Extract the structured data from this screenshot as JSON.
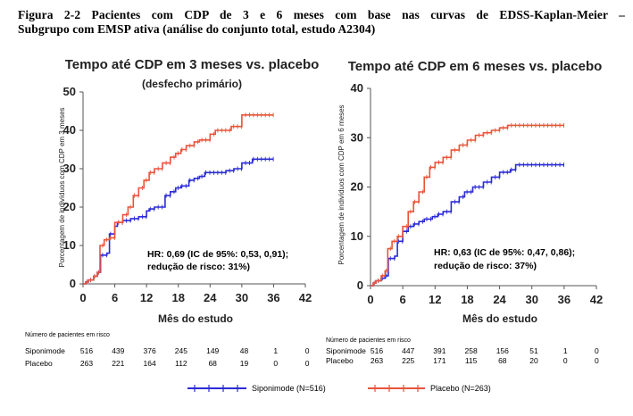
{
  "caption": {
    "line1": "Figura 2-2 Pacientes com CDP de 3 e 6 meses com base nas curvas de EDSS-Kaplan-Meier –",
    "line2": "Subgrupo com EMSP ativa (análise do conjunto total, estudo A2304)"
  },
  "colors": {
    "siponimod": "#2b2bd6",
    "placebo": "#e8543a"
  },
  "legend": {
    "siponimod": "Siponimode (N=516)",
    "placebo": "Placebo (N=263)"
  },
  "chart_data": [
    {
      "type": "line",
      "title": "Tempo até CDP em 3 meses vs. placebo",
      "subtitle": "(desfecho primário)",
      "xlabel": "Mês do estudo",
      "ylabel": "Porcentagem de indivíduos com CDP em 3 meses",
      "xlim": [
        0,
        42
      ],
      "ylim": [
        0,
        50
      ],
      "xticks": [
        0,
        6,
        12,
        18,
        24,
        30,
        36,
        42
      ],
      "yticks": [
        0,
        10,
        20,
        30,
        40,
        50
      ],
      "annotation": [
        "HR: 0,69 (IC de 95%: 0,53, 0,91);",
        "redução de risco: 31%)"
      ],
      "series": [
        {
          "name": "Siponimode (N=516)",
          "x": [
            0,
            0.5,
            1,
            2,
            2.7,
            3.3,
            4.5,
            5,
            6,
            6.5,
            7.5,
            9,
            10.5,
            12,
            12.5,
            13.5,
            15.5,
            16.5,
            17.5,
            18.5,
            20,
            21,
            22,
            23,
            25,
            27,
            28.5,
            30,
            31,
            32,
            33,
            36
          ],
          "y": [
            0,
            0.5,
            1,
            2,
            3,
            7.5,
            8,
            13,
            15,
            16,
            16.5,
            17,
            17.5,
            19,
            19.5,
            20,
            23,
            24,
            25,
            25.5,
            27,
            27.5,
            28,
            29,
            29,
            29.5,
            30,
            31.5,
            31.5,
            32.5,
            32.5,
            32.5
          ]
        },
        {
          "name": "Placebo (N=263)",
          "x": [
            0,
            0.5,
            1,
            2,
            2.7,
            3.2,
            4,
            5,
            6,
            7.5,
            8.5,
            9.5,
            10.5,
            11.5,
            12.5,
            13.5,
            15,
            16.5,
            17.5,
            18.5,
            19.5,
            21,
            22,
            24,
            25,
            26,
            28,
            30,
            31,
            32,
            33,
            36
          ],
          "y": [
            0,
            0.5,
            1,
            2,
            3,
            10,
            11.5,
            12,
            16,
            18,
            20,
            23,
            25,
            27,
            29,
            30,
            31.5,
            33,
            34,
            35,
            36,
            37,
            37.5,
            39,
            40,
            40,
            41,
            44,
            44,
            44,
            44,
            44
          ]
        }
      ],
      "risk_table": {
        "header": "Número de pacientes em risco",
        "rows": [
          {
            "label": "Siponimode",
            "values": [
              "516",
              "439",
              "376",
              "245",
              "149",
              "48",
              "1",
              "0"
            ]
          },
          {
            "label": "Placebo",
            "values": [
              "263",
              "221",
              "164",
              "112",
              "68",
              "19",
              "0",
              "0"
            ]
          }
        ]
      }
    },
    {
      "type": "line",
      "title": "Tempo até CDP em 6 meses vs. placebo",
      "xlabel": "Mês do estudo",
      "ylabel": "Porcentagem de indivíduos com CDP em 6 meses",
      "xlim": [
        0,
        42
      ],
      "ylim": [
        0,
        40
      ],
      "xticks": [
        0,
        6,
        12,
        18,
        24,
        30,
        36,
        42
      ],
      "yticks": [
        0,
        10,
        20,
        30,
        40
      ],
      "annotation": [
        "HR: 0,63 (IC de 95%: 0,47, 0,86);",
        "redução de risco: 37%)"
      ],
      "series": [
        {
          "name": "Siponimode (N=516)",
          "x": [
            0,
            0.5,
            1,
            2,
            2.7,
            3.3,
            4.5,
            5,
            6,
            7,
            8,
            9,
            10,
            11.5,
            12.5,
            13.5,
            15,
            16.5,
            17.5,
            19,
            21,
            22.5,
            24,
            26,
            27,
            30,
            33,
            36
          ],
          "y": [
            0,
            0.5,
            1,
            1.5,
            2,
            5.5,
            6,
            9,
            11,
            12,
            12.5,
            13,
            13.5,
            14,
            14.5,
            15,
            17,
            18,
            19,
            20,
            21,
            22,
            23,
            23.5,
            24.5,
            24.5,
            24.5,
            24.5
          ]
        },
        {
          "name": "Placebo (N=263)",
          "x": [
            0,
            0.5,
            1,
            2,
            2.7,
            3.2,
            4,
            5,
            6,
            7,
            8,
            9,
            10,
            11,
            12,
            13.5,
            15,
            16.5,
            18,
            19.5,
            21,
            22.5,
            24,
            25.5,
            27,
            30,
            33,
            36
          ],
          "y": [
            0,
            0.5,
            1,
            2,
            3,
            7.5,
            9,
            10,
            12,
            15,
            17,
            19,
            22,
            24,
            25,
            26,
            27.5,
            28.5,
            29.5,
            30.5,
            31,
            31.5,
            32,
            32.5,
            32.5,
            32.5,
            32.5,
            32.5
          ]
        }
      ],
      "risk_table": {
        "header": "Número de pacientes em risco",
        "rows": [
          {
            "label": "Siponimode",
            "values": [
              "516",
              "447",
              "391",
              "258",
              "156",
              "51",
              "1",
              "0"
            ]
          },
          {
            "label": "Placebo",
            "values": [
              "263",
              "225",
              "171",
              "115",
              "68",
              "20",
              "0",
              "0"
            ]
          }
        ]
      }
    }
  ]
}
